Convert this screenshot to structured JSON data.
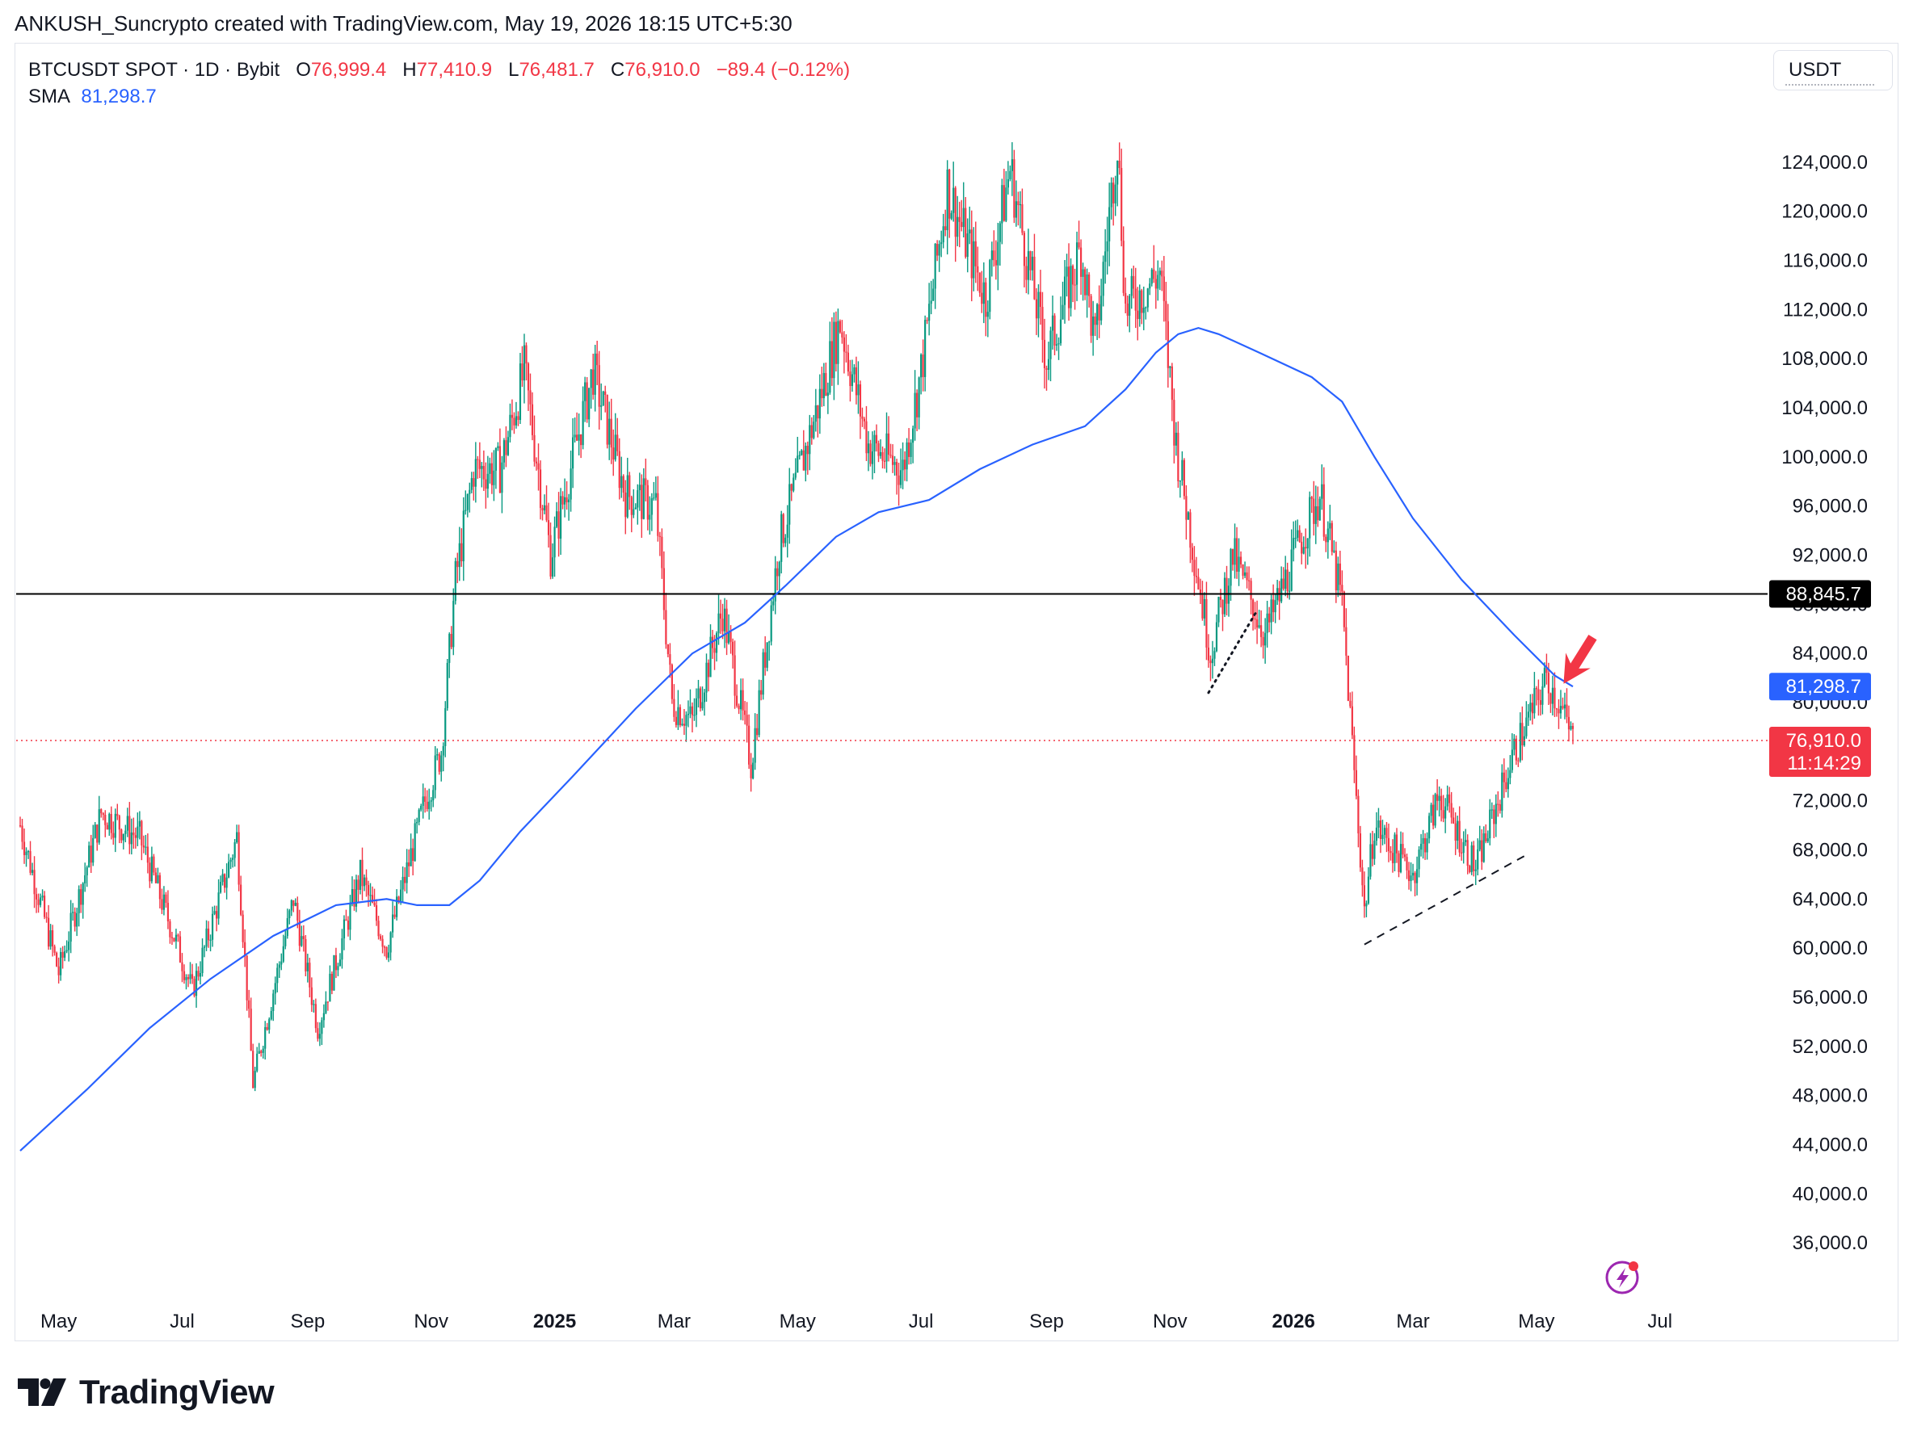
{
  "header": {
    "attribution": "ANKUSH_Suncrypto created with TradingView.com, May 19, 2026 18:15 UTC+5:30"
  },
  "legend": {
    "symbol": "BTCUSDT SPOT · 1D · Bybit",
    "open_label": "O",
    "open": "76,999.4",
    "high_label": "H",
    "high": "77,410.9",
    "low_label": "L",
    "low": "76,481.7",
    "close_label": "C",
    "close": "76,910.0",
    "change": "−89.4 (−0.12%)",
    "sma_label": "SMA",
    "sma_value": "81,298.7"
  },
  "currency_button": "USDT",
  "price_tags": {
    "horizontal_level": "88,845.7",
    "sma": "81,298.7",
    "last_price": "76,910.0",
    "countdown": "11:14:29"
  },
  "brand": "TradingView",
  "colors": {
    "up": "#089981",
    "down": "#f23645",
    "sma": "#2962ff",
    "level_line": "#000000",
    "last_price_line": "#f23645",
    "arrow": "#f23645"
  },
  "chart_data": {
    "type": "candlestick",
    "symbol": "BTCUSDT",
    "interval": "1D",
    "y_axis": {
      "range": [
        32000,
        128000
      ],
      "ticks": [
        36000,
        40000,
        44000,
        48000,
        52000,
        56000,
        60000,
        64000,
        68000,
        72000,
        76000,
        80000,
        84000,
        88000,
        92000,
        96000,
        100000,
        104000,
        108000,
        112000,
        116000,
        120000,
        124000
      ],
      "tick_labels": [
        "36,000.0",
        "40,000.0",
        "44,000.0",
        "48,000.0",
        "52,000.0",
        "56,000.0",
        "60,000.0",
        "64,000.0",
        "68,000.0",
        "72,000.0",
        "76,000.0",
        "80,000.0",
        "84,000.0",
        "88,000.0",
        "92,000.0",
        "96,000.0",
        "100,000.0",
        "104,000.0",
        "108,000.0",
        "112,000.0",
        "116,000.0",
        "120,000.0",
        "124,000.0"
      ]
    },
    "x_axis": {
      "range": [
        "2024-04-10",
        "2026-08-12"
      ],
      "ticks": [
        {
          "date": "2024-05-01",
          "label": "May",
          "bold": false
        },
        {
          "date": "2024-07-01",
          "label": "Jul",
          "bold": false
        },
        {
          "date": "2024-09-01",
          "label": "Sep",
          "bold": false
        },
        {
          "date": "2024-11-01",
          "label": "Nov",
          "bold": false
        },
        {
          "date": "2025-01-01",
          "label": "2025",
          "bold": true
        },
        {
          "date": "2025-03-01",
          "label": "Mar",
          "bold": false
        },
        {
          "date": "2025-05-01",
          "label": "May",
          "bold": false
        },
        {
          "date": "2025-07-01",
          "label": "Jul",
          "bold": false
        },
        {
          "date": "2025-09-01",
          "label": "Sep",
          "bold": false
        },
        {
          "date": "2025-11-01",
          "label": "Nov",
          "bold": false
        },
        {
          "date": "2026-01-01",
          "label": "2026",
          "bold": true
        },
        {
          "date": "2026-03-01",
          "label": "Mar",
          "bold": false
        },
        {
          "date": "2026-05-01",
          "label": "May",
          "bold": false
        },
        {
          "date": "2026-07-01",
          "label": "Jul",
          "bold": false
        }
      ]
    },
    "price_path": [
      [
        "2024-04-12",
        70000
      ],
      [
        "2024-05-01",
        58000
      ],
      [
        "2024-05-22",
        71000
      ],
      [
        "2024-06-10",
        69000
      ],
      [
        "2024-06-28",
        60500
      ],
      [
        "2024-07-06",
        56500
      ],
      [
        "2024-07-28",
        69000
      ],
      [
        "2024-08-05",
        49000
      ],
      [
        "2024-08-25",
        64000
      ],
      [
        "2024-09-06",
        53500
      ],
      [
        "2024-09-27",
        66000
      ],
      [
        "2024-10-10",
        60000
      ],
      [
        "2024-10-29",
        72000
      ],
      [
        "2024-11-06",
        76000
      ],
      [
        "2024-11-13",
        90000
      ],
      [
        "2024-11-22",
        99000
      ],
      [
        "2024-12-05",
        99000
      ],
      [
        "2024-12-17",
        107000
      ],
      [
        "2024-12-30",
        92000
      ],
      [
        "2025-01-20",
        107000
      ],
      [
        "2025-02-05",
        97000
      ],
      [
        "2025-02-20",
        96000
      ],
      [
        "2025-02-28",
        80000
      ],
      [
        "2025-03-10",
        78500
      ],
      [
        "2025-03-25",
        87500
      ],
      [
        "2025-04-08",
        75000
      ],
      [
        "2025-04-22",
        93000
      ],
      [
        "2025-05-10",
        103500
      ],
      [
        "2025-05-22",
        111000
      ],
      [
        "2025-06-05",
        101000
      ],
      [
        "2025-06-22",
        99000
      ],
      [
        "2025-07-01",
        107000
      ],
      [
        "2025-07-14",
        122000
      ],
      [
        "2025-08-02",
        113000
      ],
      [
        "2025-08-14",
        123500
      ],
      [
        "2025-09-01",
        108000
      ],
      [
        "2025-09-18",
        117000
      ],
      [
        "2025-09-25",
        109000
      ],
      [
        "2025-10-06",
        126000
      ],
      [
        "2025-10-10",
        112000
      ],
      [
        "2025-10-27",
        115000
      ],
      [
        "2025-11-04",
        101000
      ],
      [
        "2025-11-21",
        84000
      ],
      [
        "2025-12-02",
        92000
      ],
      [
        "2025-12-18",
        85500
      ],
      [
        "2026-01-05",
        93500
      ],
      [
        "2026-01-14",
        97000
      ],
      [
        "2026-01-25",
        88000
      ],
      [
        "2026-02-05",
        63000
      ],
      [
        "2026-02-10",
        70000
      ],
      [
        "2026-03-01",
        66000
      ],
      [
        "2026-03-14",
        72500
      ],
      [
        "2026-04-01",
        66500
      ],
      [
        "2026-04-20",
        76000
      ],
      [
        "2026-05-06",
        82000
      ],
      [
        "2026-05-12",
        80000
      ],
      [
        "2026-05-19",
        76910
      ]
    ],
    "sma": [
      [
        "2024-04-12",
        43500
      ],
      [
        "2024-05-15",
        48500
      ],
      [
        "2024-06-15",
        53500
      ],
      [
        "2024-07-15",
        57500
      ],
      [
        "2024-08-15",
        61000
      ],
      [
        "2024-09-15",
        63500
      ],
      [
        "2024-10-10",
        64000
      ],
      [
        "2024-10-25",
        63500
      ],
      [
        "2024-11-10",
        63500
      ],
      [
        "2024-11-25",
        65500
      ],
      [
        "2024-12-15",
        69500
      ],
      [
        "2025-01-10",
        74000
      ],
      [
        "2025-02-10",
        79500
      ],
      [
        "2025-03-10",
        84000
      ],
      [
        "2025-04-05",
        86500
      ],
      [
        "2025-04-25",
        89500
      ],
      [
        "2025-05-20",
        93500
      ],
      [
        "2025-06-10",
        95500
      ],
      [
        "2025-07-05",
        96500
      ],
      [
        "2025-07-30",
        99000
      ],
      [
        "2025-08-25",
        101000
      ],
      [
        "2025-09-20",
        102500
      ],
      [
        "2025-10-10",
        105500
      ],
      [
        "2025-10-25",
        108500
      ],
      [
        "2025-11-05",
        110000
      ],
      [
        "2025-11-15",
        110500
      ],
      [
        "2025-11-25",
        110000
      ],
      [
        "2025-12-15",
        108500
      ],
      [
        "2026-01-10",
        106500
      ],
      [
        "2026-01-25",
        104500
      ],
      [
        "2026-02-10",
        100000
      ],
      [
        "2026-03-01",
        95000
      ],
      [
        "2026-03-25",
        90000
      ],
      [
        "2026-04-20",
        85500
      ],
      [
        "2026-05-10",
        82200
      ],
      [
        "2026-05-19",
        81298.7
      ]
    ],
    "horizontal_level": 88845.7,
    "last_price": 76910.0,
    "annotations": [
      {
        "type": "dotted_line",
        "from": [
          "2025-11-20",
          80800
        ],
        "to": [
          "2025-12-14",
          87500
        ]
      },
      {
        "type": "dashed_line",
        "from": [
          "2026-02-05",
          60300
        ],
        "to": [
          "2026-04-25",
          67500
        ]
      },
      {
        "type": "arrow",
        "pointing_at": [
          "2026-05-12",
          81000
        ]
      }
    ],
    "legend_position": "top-left",
    "grid": false
  }
}
